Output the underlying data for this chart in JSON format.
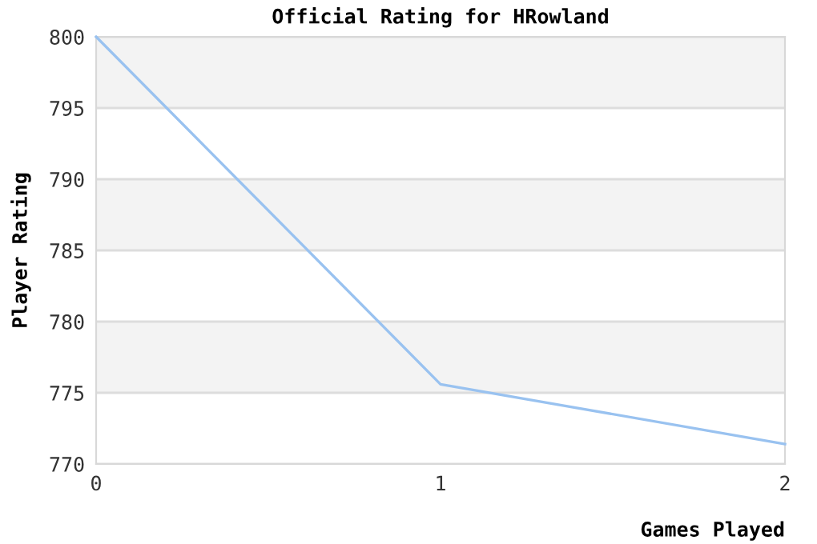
{
  "chart_data": {
    "type": "line",
    "title": "Official Rating for HRowland",
    "xlabel": "Games Played",
    "ylabel": "Player Rating",
    "x": [
      0,
      1,
      2
    ],
    "series": [
      {
        "color": "#99c2f0",
        "values": [
          800,
          775.6,
          771.4
        ]
      }
    ],
    "xlim": [
      0,
      2
    ],
    "xticks": [
      0,
      1,
      2
    ],
    "ylim": [
      770,
      800
    ],
    "yticks": [
      770,
      775,
      780,
      785,
      790,
      795,
      800
    ],
    "grid": "y",
    "marker": "none",
    "line_style": "solid",
    "bands": [
      {
        "axis": "y",
        "from": 775,
        "to": 780,
        "color": "#f3f3f3"
      },
      {
        "axis": "y",
        "from": 785,
        "to": 790,
        "color": "#f3f3f3"
      },
      {
        "axis": "y",
        "from": 795,
        "to": 800,
        "color": "#f3f3f3"
      }
    ]
  }
}
